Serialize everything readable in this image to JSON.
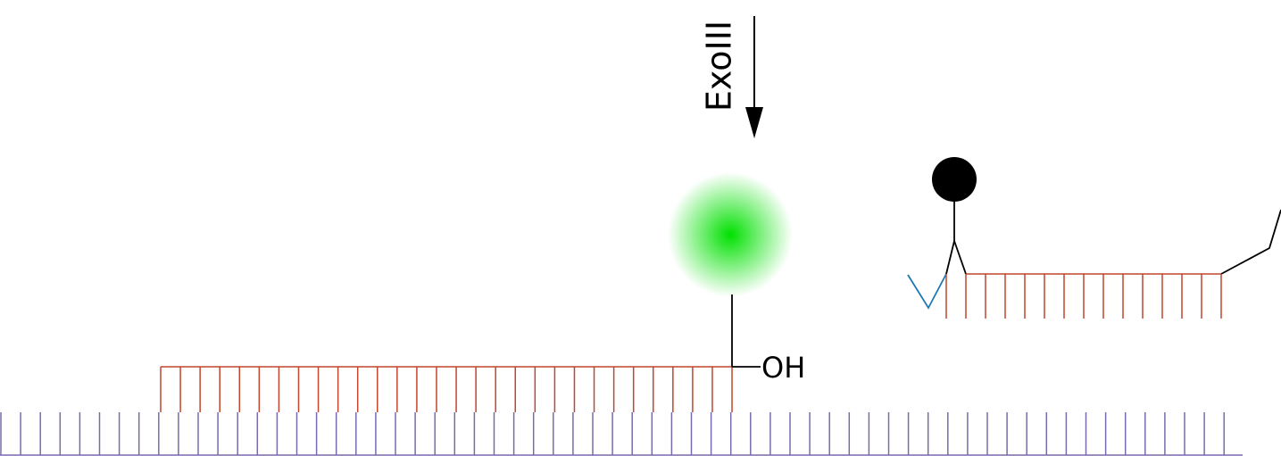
{
  "labels": {
    "enzyme": "ExoIII",
    "terminus": "OH"
  }
}
